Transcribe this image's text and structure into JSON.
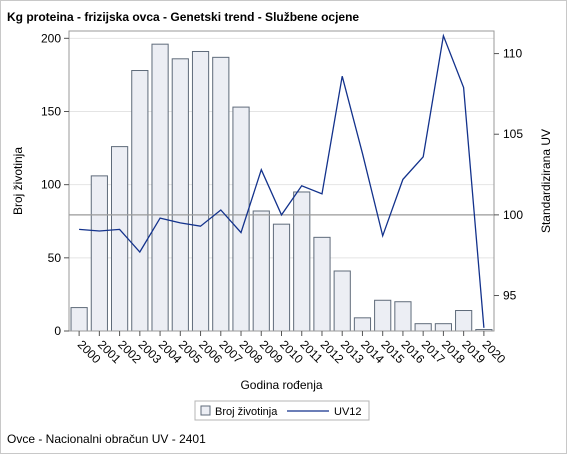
{
  "title": "Kg proteina - frizijska ovca - Genetski trend - Službene ocjene",
  "footnote": "Ovce - Nacionalni obračun UV - 2401",
  "chart_data": {
    "type": "bar",
    "categories": [
      "2000",
      "2001",
      "2002",
      "2003",
      "2004",
      "2005",
      "2006",
      "2007",
      "2008",
      "2009",
      "2010",
      "2011",
      "2012",
      "2013",
      "2014",
      "2015",
      "2016",
      "2017",
      "2018",
      "2019",
      "2020"
    ],
    "xlabel": "Godina rođenja",
    "ylabel": "Broj životinja",
    "y2label": "Standardizirana UV",
    "ylim": [
      0,
      205
    ],
    "y2lim": [
      92.8,
      111.4
    ],
    "yticks": [
      0,
      50,
      100,
      150,
      200
    ],
    "y2ticks": [
      95,
      100,
      105,
      110
    ],
    "reference_line_y2": 100,
    "grid": true,
    "legend_position": "bottom",
    "series": [
      {
        "name": "Broj životinja",
        "type": "bar",
        "axis": "left",
        "values": [
          16,
          106,
          126,
          178,
          196,
          186,
          191,
          187,
          153,
          82,
          73,
          95,
          64,
          41,
          9,
          21,
          20,
          5,
          5,
          14,
          1
        ],
        "color": "#eceef4",
        "stroke": "#5f6b7a"
      },
      {
        "name": "UV12",
        "type": "line",
        "axis": "right",
        "values": [
          99.1,
          99.0,
          99.1,
          97.7,
          99.8,
          99.5,
          99.3,
          100.3,
          98.9,
          102.8,
          100.0,
          101.8,
          101.3,
          108.6,
          103.8,
          98.7,
          102.2,
          103.6,
          111.1,
          107.9,
          93.0
        ],
        "color": "#13328c"
      }
    ]
  }
}
